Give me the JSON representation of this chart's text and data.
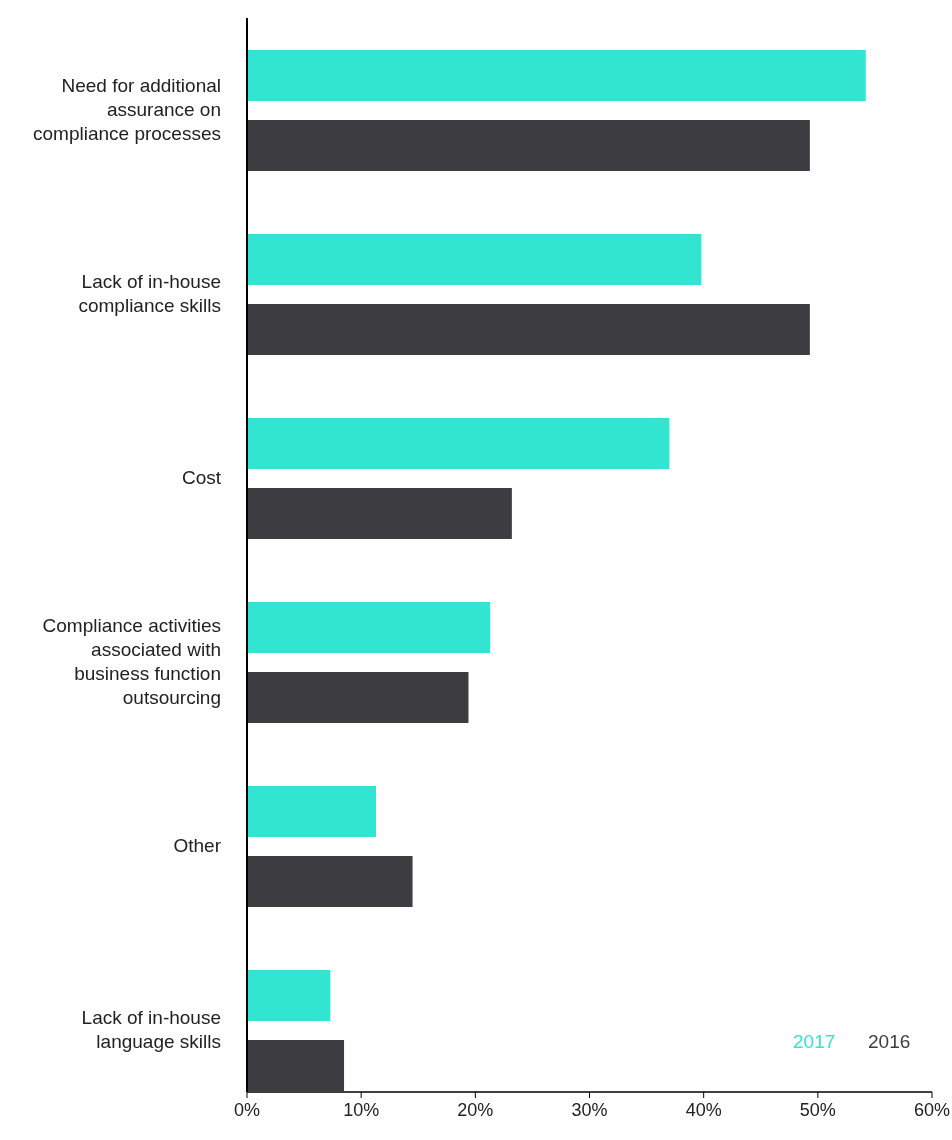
{
  "chart_data": {
    "type": "bar",
    "orientation": "horizontal",
    "categories": [
      "Need for additional assurance on compliance processes",
      "Lack of in-house compliance skills",
      "Cost",
      "Compliance activities associated with business function outsourcing",
      "Other",
      "Lack of in-house language skills"
    ],
    "series": [
      {
        "name": "2017",
        "color": "#31e5d0",
        "values": [
          54.2,
          39.8,
          37.0,
          21.3,
          11.3,
          7.3
        ]
      },
      {
        "name": "2016",
        "color": "#3d3c41",
        "values": [
          49.3,
          49.3,
          23.2,
          19.4,
          14.5,
          8.5
        ]
      }
    ],
    "xlim": [
      0,
      60
    ],
    "xticks": [
      {
        "value": 0,
        "label": "0%"
      },
      {
        "value": 10,
        "label": "10%"
      },
      {
        "value": 20,
        "label": "20%"
      },
      {
        "value": 30,
        "label": "30%"
      },
      {
        "value": 40,
        "label": "40%"
      },
      {
        "value": 50,
        "label": "50%"
      },
      {
        "value": 60,
        "label": "60%"
      }
    ],
    "grid": false,
    "legend": "bottom right"
  }
}
